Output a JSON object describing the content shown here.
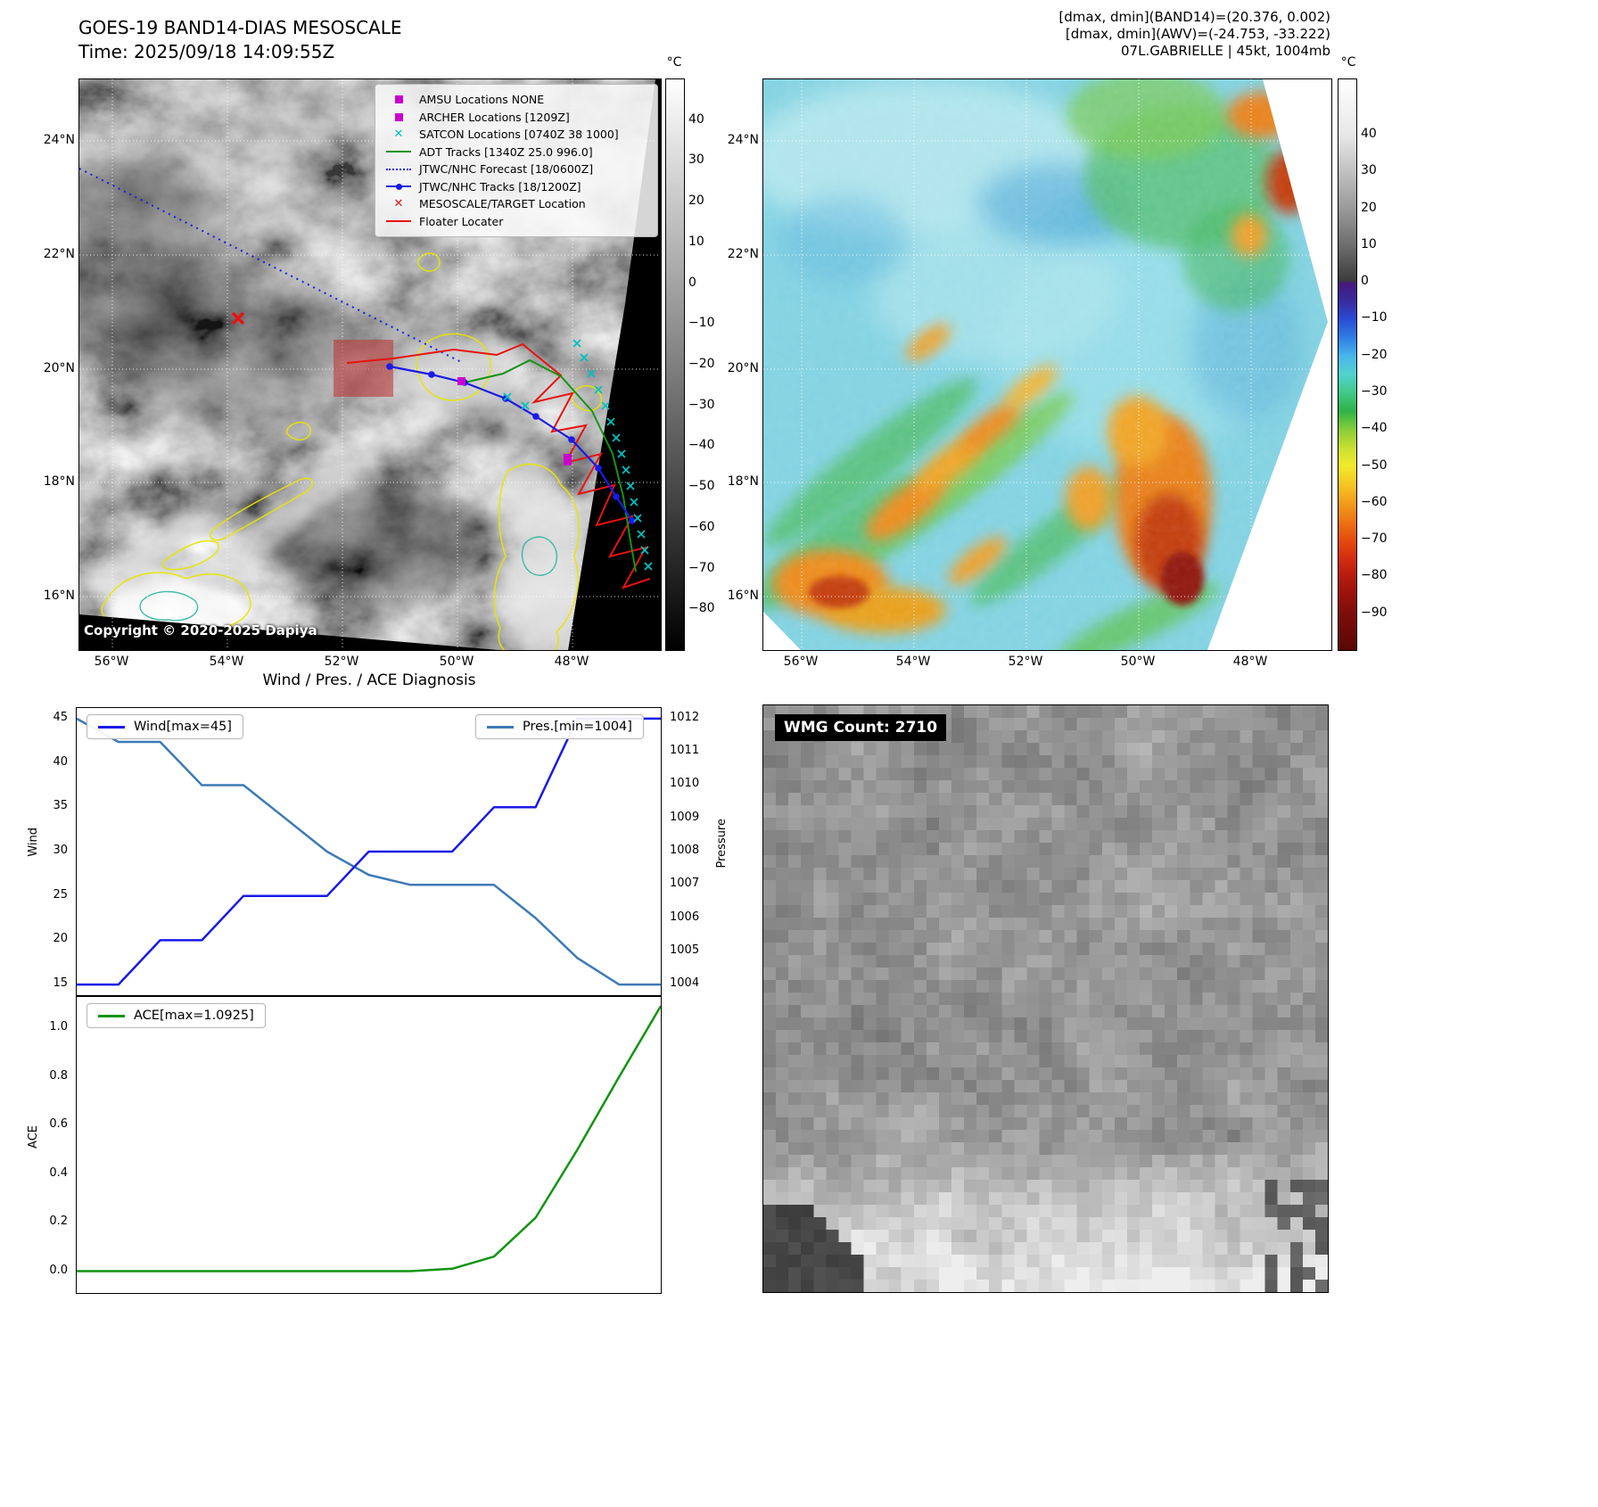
{
  "band14": {
    "title": "GOES-19 BAND14-DIAS MESOSCALE",
    "time_line": "Time: 2025/09/18 14:09:55Z",
    "copyright": "Copyright © 2020-2025 Dapiya",
    "x_ticks": [
      "56°W",
      "54°W",
      "52°W",
      "50°W",
      "48°W"
    ],
    "y_ticks": [
      "24°N",
      "22°N",
      "20°N",
      "18°N",
      "16°N"
    ],
    "colorbar": {
      "unit": "°C",
      "ticks": [
        40,
        30,
        20,
        10,
        0,
        -10,
        -20,
        -30,
        -40,
        -50,
        -60,
        -70,
        -80
      ],
      "range": [
        -90,
        50
      ]
    },
    "legend": [
      {
        "label": "AMSU Locations NONE",
        "marker": "square",
        "color": "#cc00cc"
      },
      {
        "label": "ARCHER Locations [1209Z]",
        "marker": "square",
        "color": "#cc00cc"
      },
      {
        "label": "SATCON Locations [0740Z 38 1000]",
        "marker": "x",
        "color": "#00c0c0"
      },
      {
        "label": "ADT Tracks [1340Z 25.0 996.0]",
        "marker": "line",
        "color": "#149414"
      },
      {
        "label": "JTWC/NHC Forecast [18/0600Z]",
        "marker": "dotted",
        "color": "#1a1ae6"
      },
      {
        "label": "JTWC/NHC Tracks [18/1200Z]",
        "marker": "linedot",
        "color": "#1a1ae6"
      },
      {
        "label": "MESOSCALE/TARGET Location",
        "marker": "x",
        "color": "#e81212"
      },
      {
        "label": "Floater Locater",
        "marker": "line",
        "color": "#e81212"
      }
    ]
  },
  "awv": {
    "header_lines": [
      "[dmax, dmin](BAND14)=(20.376, 0.002)",
      "[dmax, dmin](AWV)=(-24.753, -33.222)",
      "07L.GABRIELLE | 45kt, 1004mb"
    ],
    "x_ticks": [
      "56°W",
      "54°W",
      "52°W",
      "50°W",
      "48°W"
    ],
    "y_ticks": [
      "24°N",
      "22°N",
      "20°N",
      "18°N",
      "16°N"
    ],
    "colorbar": {
      "unit": "°C",
      "ticks": [
        40,
        30,
        20,
        10,
        0,
        -10,
        -20,
        -30,
        -40,
        -50,
        -60,
        -70,
        -80,
        -90
      ],
      "range": [
        -100,
        55
      ]
    }
  },
  "diagnosis": {
    "title": "Wind / Pres. / ACE Diagnosis"
  },
  "wmg": {
    "label": "WMG Count: 2710"
  },
  "chart_data": [
    {
      "type": "line",
      "title": "Wind / Pres. / ACE Diagnosis",
      "x": [
        0,
        1,
        2,
        3,
        4,
        5,
        6,
        7,
        8,
        9,
        10,
        11,
        12,
        13,
        14
      ],
      "series": [
        {
          "name": "Wind[max=45]",
          "yaxis": "left",
          "color": "#1a1ae6",
          "values": [
            15,
            15,
            20,
            20,
            25,
            25,
            25,
            30,
            30,
            30,
            35,
            35,
            45,
            45,
            45
          ]
        },
        {
          "name": "Pres.[min=1004]",
          "yaxis": "right",
          "color": "#3d7ab5",
          "values": [
            1012,
            1011.3,
            1011.3,
            1010,
            1010,
            1009,
            1008,
            1007.3,
            1007,
            1007,
            1007,
            1006,
            1004.8,
            1004,
            1004
          ]
        }
      ],
      "ylabel_left": "Wind",
      "yticks_left": [
        15,
        20,
        25,
        30,
        35,
        40,
        45
      ],
      "ylim_left": [
        13.8,
        46.2
      ],
      "ylabel_right": "Pressure",
      "yticks_right": [
        1004,
        1005,
        1006,
        1007,
        1008,
        1009,
        1010,
        1011,
        1012
      ],
      "ylim_right": [
        1003.68,
        1012.32
      ]
    },
    {
      "type": "line",
      "x": [
        0,
        1,
        2,
        3,
        4,
        5,
        6,
        7,
        8,
        9,
        10,
        11,
        12,
        13,
        14
      ],
      "series": [
        {
          "name": "ACE[max=1.0925]",
          "color": "#149414",
          "values": [
            0,
            0,
            0,
            0,
            0,
            0,
            0,
            0,
            0,
            0.01,
            0.06,
            0.22,
            0.5,
            0.8,
            1.0925
          ]
        }
      ],
      "ylabel": "ACE",
      "yticks": [
        0,
        0.2,
        0.4,
        0.6,
        0.8,
        1.0
      ],
      "ylim": [
        -0.09,
        1.13
      ]
    }
  ]
}
